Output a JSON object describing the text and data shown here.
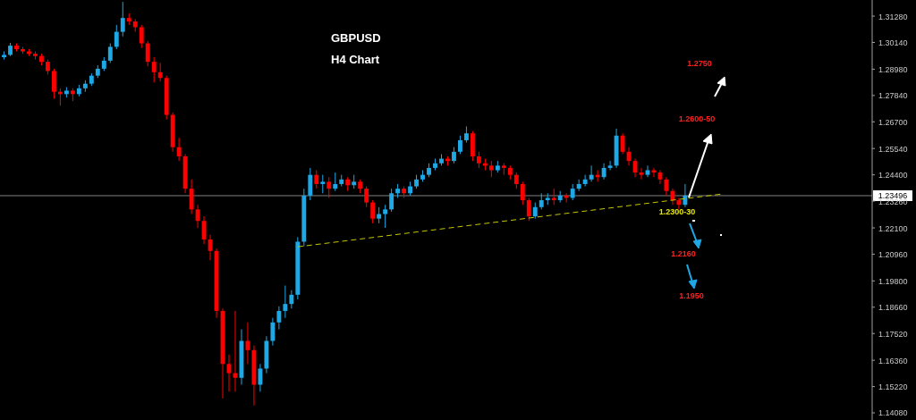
{
  "chart_data": {
    "type": "candlestick",
    "title": "GBPUSD",
    "subtitle": "H4 Chart",
    "categories": [
      null,
      null,
      null,
      null,
      null,
      null,
      null,
      null,
      null,
      null,
      null,
      null,
      null,
      null,
      null,
      null,
      null,
      null,
      null,
      null,
      null,
      null,
      null,
      null,
      null,
      null,
      null,
      null,
      null,
      null,
      null,
      null,
      null,
      null,
      null,
      null,
      null,
      null,
      null,
      null,
      null,
      null,
      null,
      null,
      null,
      null,
      null,
      null,
      null,
      null,
      null,
      null,
      null,
      null,
      null,
      null,
      null,
      null,
      null,
      null,
      null,
      null,
      null,
      null,
      null,
      null,
      null,
      null,
      null,
      null,
      null,
      null,
      null,
      null,
      null,
      null,
      null,
      null,
      null,
      null,
      null,
      null,
      null,
      null,
      null,
      null,
      null,
      null,
      null,
      null,
      null,
      null,
      null,
      null,
      null,
      null,
      null,
      null,
      null,
      null,
      null,
      null,
      null,
      null,
      null,
      null,
      null,
      null,
      null,
      null,
      null,
      null,
      null,
      null,
      null,
      null,
      null,
      null,
      null,
      null,
      null,
      null,
      null,
      null,
      null,
      null,
      null,
      null,
      null,
      null,
      null,
      null,
      null,
      null,
      null,
      null,
      null,
      null,
      null,
      null
    ],
    "ohlc": [
      [
        1.295,
        1.2975,
        1.294,
        1.296
      ],
      [
        1.296,
        1.3012,
        1.2955,
        1.3
      ],
      [
        1.3,
        1.301,
        1.2975,
        1.2985
      ],
      [
        1.2985,
        1.2995,
        1.2965,
        1.2975
      ],
      [
        1.2975,
        1.2985,
        1.2955,
        1.2965
      ],
      [
        1.2965,
        1.2975,
        1.294,
        1.2955
      ],
      [
        1.2955,
        1.2965,
        1.2915,
        1.293
      ],
      [
        1.293,
        1.294,
        1.2875,
        1.289
      ],
      [
        1.289,
        1.29,
        1.277,
        1.28
      ],
      [
        1.28,
        1.2815,
        1.274,
        1.279
      ],
      [
        1.279,
        1.282,
        1.2775,
        1.2805
      ],
      [
        1.2805,
        1.2815,
        1.276,
        1.279
      ],
      [
        1.279,
        1.283,
        1.278,
        1.2815
      ],
      [
        1.2815,
        1.285,
        1.28,
        1.2835
      ],
      [
        1.2835,
        1.288,
        1.2825,
        1.287
      ],
      [
        1.287,
        1.2915,
        1.286,
        1.29
      ],
      [
        1.29,
        1.295,
        1.289,
        1.2935
      ],
      [
        1.2935,
        1.301,
        1.2925,
        1.2995
      ],
      [
        1.2995,
        1.309,
        1.2985,
        1.306
      ],
      [
        1.306,
        1.319,
        1.304,
        1.312
      ],
      [
        1.312,
        1.314,
        1.309,
        1.3105
      ],
      [
        1.3105,
        1.3115,
        1.306,
        1.308
      ],
      [
        1.308,
        1.309,
        1.299,
        1.301
      ],
      [
        1.301,
        1.302,
        1.291,
        1.293
      ],
      [
        1.293,
        1.295,
        1.284,
        1.2885
      ],
      [
        1.2885,
        1.2925,
        1.2845,
        1.286
      ],
      [
        1.286,
        1.287,
        1.268,
        1.27
      ],
      [
        1.27,
        1.271,
        1.254,
        1.256
      ],
      [
        1.256,
        1.26,
        1.25,
        1.252
      ],
      [
        1.252,
        1.253,
        1.236,
        1.238
      ],
      [
        1.238,
        1.242,
        1.227,
        1.229
      ],
      [
        1.229,
        1.231,
        1.221,
        1.224
      ],
      [
        1.224,
        1.226,
        1.214,
        1.216
      ],
      [
        1.216,
        1.218,
        1.207,
        1.211
      ],
      [
        1.211,
        1.212,
        1.182,
        1.185
      ],
      [
        1.185,
        1.186,
        1.147,
        1.162
      ],
      [
        1.162,
        1.166,
        1.15,
        1.158
      ],
      [
        1.158,
        1.185,
        1.15,
        1.156
      ],
      [
        1.156,
        1.177,
        1.153,
        1.172
      ],
      [
        1.172,
        1.18,
        1.162,
        1.168
      ],
      [
        1.168,
        1.17,
        1.144,
        1.153
      ],
      [
        1.153,
        1.162,
        1.15,
        1.16
      ],
      [
        1.16,
        1.174,
        1.158,
        1.172
      ],
      [
        1.172,
        1.182,
        1.17,
        1.18
      ],
      [
        1.18,
        1.187,
        1.177,
        1.185
      ],
      [
        1.185,
        1.196,
        1.182,
        1.188
      ],
      [
        1.188,
        1.194,
        1.186,
        1.192
      ],
      [
        1.192,
        1.217,
        1.19,
        1.215
      ],
      [
        1.215,
        1.238,
        1.213,
        1.235
      ],
      [
        1.235,
        1.247,
        1.233,
        1.244
      ],
      [
        1.244,
        1.246,
        1.238,
        1.24
      ],
      [
        1.24,
        1.244,
        1.236,
        1.241
      ],
      [
        1.241,
        1.243,
        1.234,
        1.238
      ],
      [
        1.238,
        1.245,
        1.237,
        1.24
      ],
      [
        1.24,
        1.244,
        1.239,
        1.242
      ],
      [
        1.242,
        1.243,
        1.237,
        1.2395
      ],
      [
        1.2395,
        1.244,
        1.238,
        1.241
      ],
      [
        1.241,
        1.242,
        1.236,
        1.238
      ],
      [
        1.238,
        1.239,
        1.23,
        1.232
      ],
      [
        1.232,
        1.233,
        1.223,
        1.225
      ],
      [
        1.225,
        1.23,
        1.223,
        1.227
      ],
      [
        1.227,
        1.231,
        1.221,
        1.229
      ],
      [
        1.229,
        1.238,
        1.228,
        1.236
      ],
      [
        1.236,
        1.24,
        1.234,
        1.238
      ],
      [
        1.238,
        1.239,
        1.234,
        1.236
      ],
      [
        1.236,
        1.241,
        1.235,
        1.239
      ],
      [
        1.239,
        1.244,
        1.238,
        1.242
      ],
      [
        1.242,
        1.246,
        1.241,
        1.244
      ],
      [
        1.244,
        1.249,
        1.243,
        1.247
      ],
      [
        1.247,
        1.251,
        1.246,
        1.249
      ],
      [
        1.249,
        1.253,
        1.248,
        1.251
      ],
      [
        1.251,
        1.252,
        1.248,
        1.25
      ],
      [
        1.25,
        1.256,
        1.249,
        1.254
      ],
      [
        1.254,
        1.261,
        1.253,
        1.259
      ],
      [
        1.259,
        1.265,
        1.258,
        1.262
      ],
      [
        1.262,
        1.263,
        1.25,
        1.252
      ],
      [
        1.252,
        1.254,
        1.247,
        1.249
      ],
      [
        1.249,
        1.251,
        1.246,
        1.248
      ],
      [
        1.248,
        1.25,
        1.243,
        1.246
      ],
      [
        1.246,
        1.25,
        1.245,
        1.248
      ],
      [
        1.248,
        1.249,
        1.244,
        1.247
      ],
      [
        1.247,
        1.248,
        1.242,
        1.244
      ],
      [
        1.244,
        1.245,
        1.238,
        1.24
      ],
      [
        1.24,
        1.241,
        1.231,
        1.233
      ],
      [
        1.233,
        1.234,
        1.224,
        1.226
      ],
      [
        1.226,
        1.232,
        1.225,
        1.23
      ],
      [
        1.23,
        1.236,
        1.229,
        1.233
      ],
      [
        1.233,
        1.236,
        1.231,
        1.234
      ],
      [
        1.234,
        1.238,
        1.231,
        1.233
      ],
      [
        1.233,
        1.237,
        1.232,
        1.235
      ],
      [
        1.235,
        1.236,
        1.232,
        1.234
      ],
      [
        1.234,
        1.24,
        1.233,
        1.238
      ],
      [
        1.238,
        1.242,
        1.237,
        1.24
      ],
      [
        1.24,
        1.244,
        1.239,
        1.242
      ],
      [
        1.242,
        1.248,
        1.241,
        1.244
      ],
      [
        1.244,
        1.246,
        1.241,
        1.243
      ],
      [
        1.243,
        1.249,
        1.242,
        1.247
      ],
      [
        1.247,
        1.25,
        1.246,
        1.248
      ],
      [
        1.248,
        1.264,
        1.247,
        1.261
      ],
      [
        1.261,
        1.262,
        1.253,
        1.254
      ],
      [
        1.254,
        1.256,
        1.248,
        1.25
      ],
      [
        1.25,
        1.251,
        1.243,
        1.245
      ],
      [
        1.245,
        1.247,
        1.242,
        1.244
      ],
      [
        1.244,
        1.248,
        1.243,
        1.246
      ],
      [
        1.246,
        1.247,
        1.243,
        1.245
      ],
      [
        1.245,
        1.246,
        1.24,
        1.242
      ],
      [
        1.242,
        1.243,
        1.235,
        1.237
      ],
      [
        1.237,
        1.238,
        1.231,
        1.233
      ],
      [
        1.233,
        1.234,
        1.229,
        1.231
      ],
      [
        1.231,
        1.24,
        1.23,
        1.235
      ],
      null,
      null,
      null,
      null,
      null,
      null,
      null,
      null,
      null,
      null,
      null,
      null,
      null,
      null,
      null,
      null,
      null,
      null,
      null,
      null,
      null,
      null,
      null,
      null,
      null,
      null,
      null,
      null,
      null,
      null
    ],
    "series": [
      {
        "type": "line",
        "color": "#c8c800",
        "line_style": "dashed",
        "values": [
          null,
          null,
          null,
          null,
          null,
          null,
          null,
          null,
          null,
          null,
          null,
          null,
          null,
          null,
          null,
          null,
          null,
          null,
          null,
          null,
          null,
          null,
          null,
          null,
          null,
          null,
          null,
          null,
          null,
          null,
          null,
          null,
          null,
          null,
          null,
          null,
          null,
          null,
          null,
          null,
          null,
          null,
          null,
          null,
          null,
          null,
          null,
          1.2128,
          null,
          null,
          null,
          null,
          null,
          null,
          null,
          null,
          null,
          null,
          null,
          null,
          null,
          null,
          null,
          null,
          null,
          null,
          null,
          null,
          null,
          null,
          null,
          null,
          null,
          null,
          null,
          null,
          null,
          null,
          null,
          null,
          null,
          null,
          null,
          null,
          null,
          null,
          null,
          null,
          null,
          null,
          null,
          null,
          null,
          null,
          null,
          null,
          null,
          null,
          null,
          null,
          null,
          null,
          null,
          null,
          null,
          null,
          null,
          null,
          null,
          null,
          null,
          null,
          null,
          null,
          null,
          1.2357,
          null,
          null,
          null,
          null,
          null,
          null,
          null,
          null,
          null,
          null,
          null,
          null,
          null,
          null,
          null,
          null,
          null,
          null,
          null,
          null,
          null,
          null,
          null,
          null
        ]
      }
    ],
    "ylim": [
      1.1377,
      1.3198
    ],
    "yticks": [
      {
        "value": 1.3128,
        "label": "1.31280"
      },
      {
        "value": 1.3014,
        "label": "1.30140"
      },
      {
        "value": 1.2898,
        "label": "1.28980"
      },
      {
        "value": 1.2784,
        "label": "1.27840"
      },
      {
        "value": 1.267,
        "label": "1.26700"
      },
      {
        "value": 1.2554,
        "label": "1.25540"
      },
      {
        "value": 1.244,
        "label": "1.24400"
      },
      {
        "value": 1.2326,
        "label": "1.23260"
      },
      {
        "value": 1.221,
        "label": "1.22100"
      },
      {
        "value": 1.2096,
        "label": "1.20960"
      },
      {
        "value": 1.198,
        "label": "1.19800"
      },
      {
        "value": 1.1866,
        "label": "1.18660"
      },
      {
        "value": 1.1752,
        "label": "1.17520"
      },
      {
        "value": 1.1636,
        "label": "1.16360"
      },
      {
        "value": 1.1522,
        "label": "1.15220"
      },
      {
        "value": 1.1408,
        "label": "1.14080"
      }
    ],
    "tick_labels": "y",
    "ref_lines": [
      {
        "axis": "y",
        "value": 1.23496,
        "label": "1.23496",
        "color": "#808080"
      }
    ],
    "annotations": [
      "1.2750",
      "1.2600-50",
      "1.2300-30",
      "1.2160",
      "1.1950"
    ]
  }
}
